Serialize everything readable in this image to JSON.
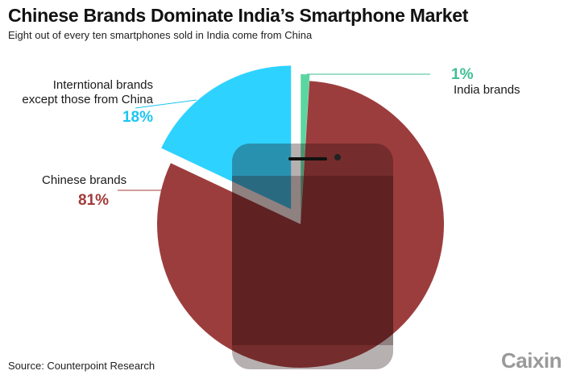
{
  "chart_data": {
    "type": "pie",
    "title": "Chinese Brands Dominate India’s Smartphone Market",
    "subtitle": "Eight out of every ten smartphones sold in India come from China",
    "source": "Source: Counterpoint Research",
    "brand": "Caixin",
    "slices": [
      {
        "key": "chinese",
        "label_lines": [
          "Chinese brands"
        ],
        "value": 81,
        "value_label": "81%",
        "color": "#8e2222"
      },
      {
        "key": "international",
        "label_lines": [
          "Interntional brands",
          "except those from China"
        ],
        "value": 18,
        "value_label": "18%",
        "color": "#2ed2ff"
      },
      {
        "key": "india",
        "label_lines": [
          "India brands"
        ],
        "value": 1,
        "value_label": "1%",
        "color": "#5cd6a0"
      }
    ]
  }
}
